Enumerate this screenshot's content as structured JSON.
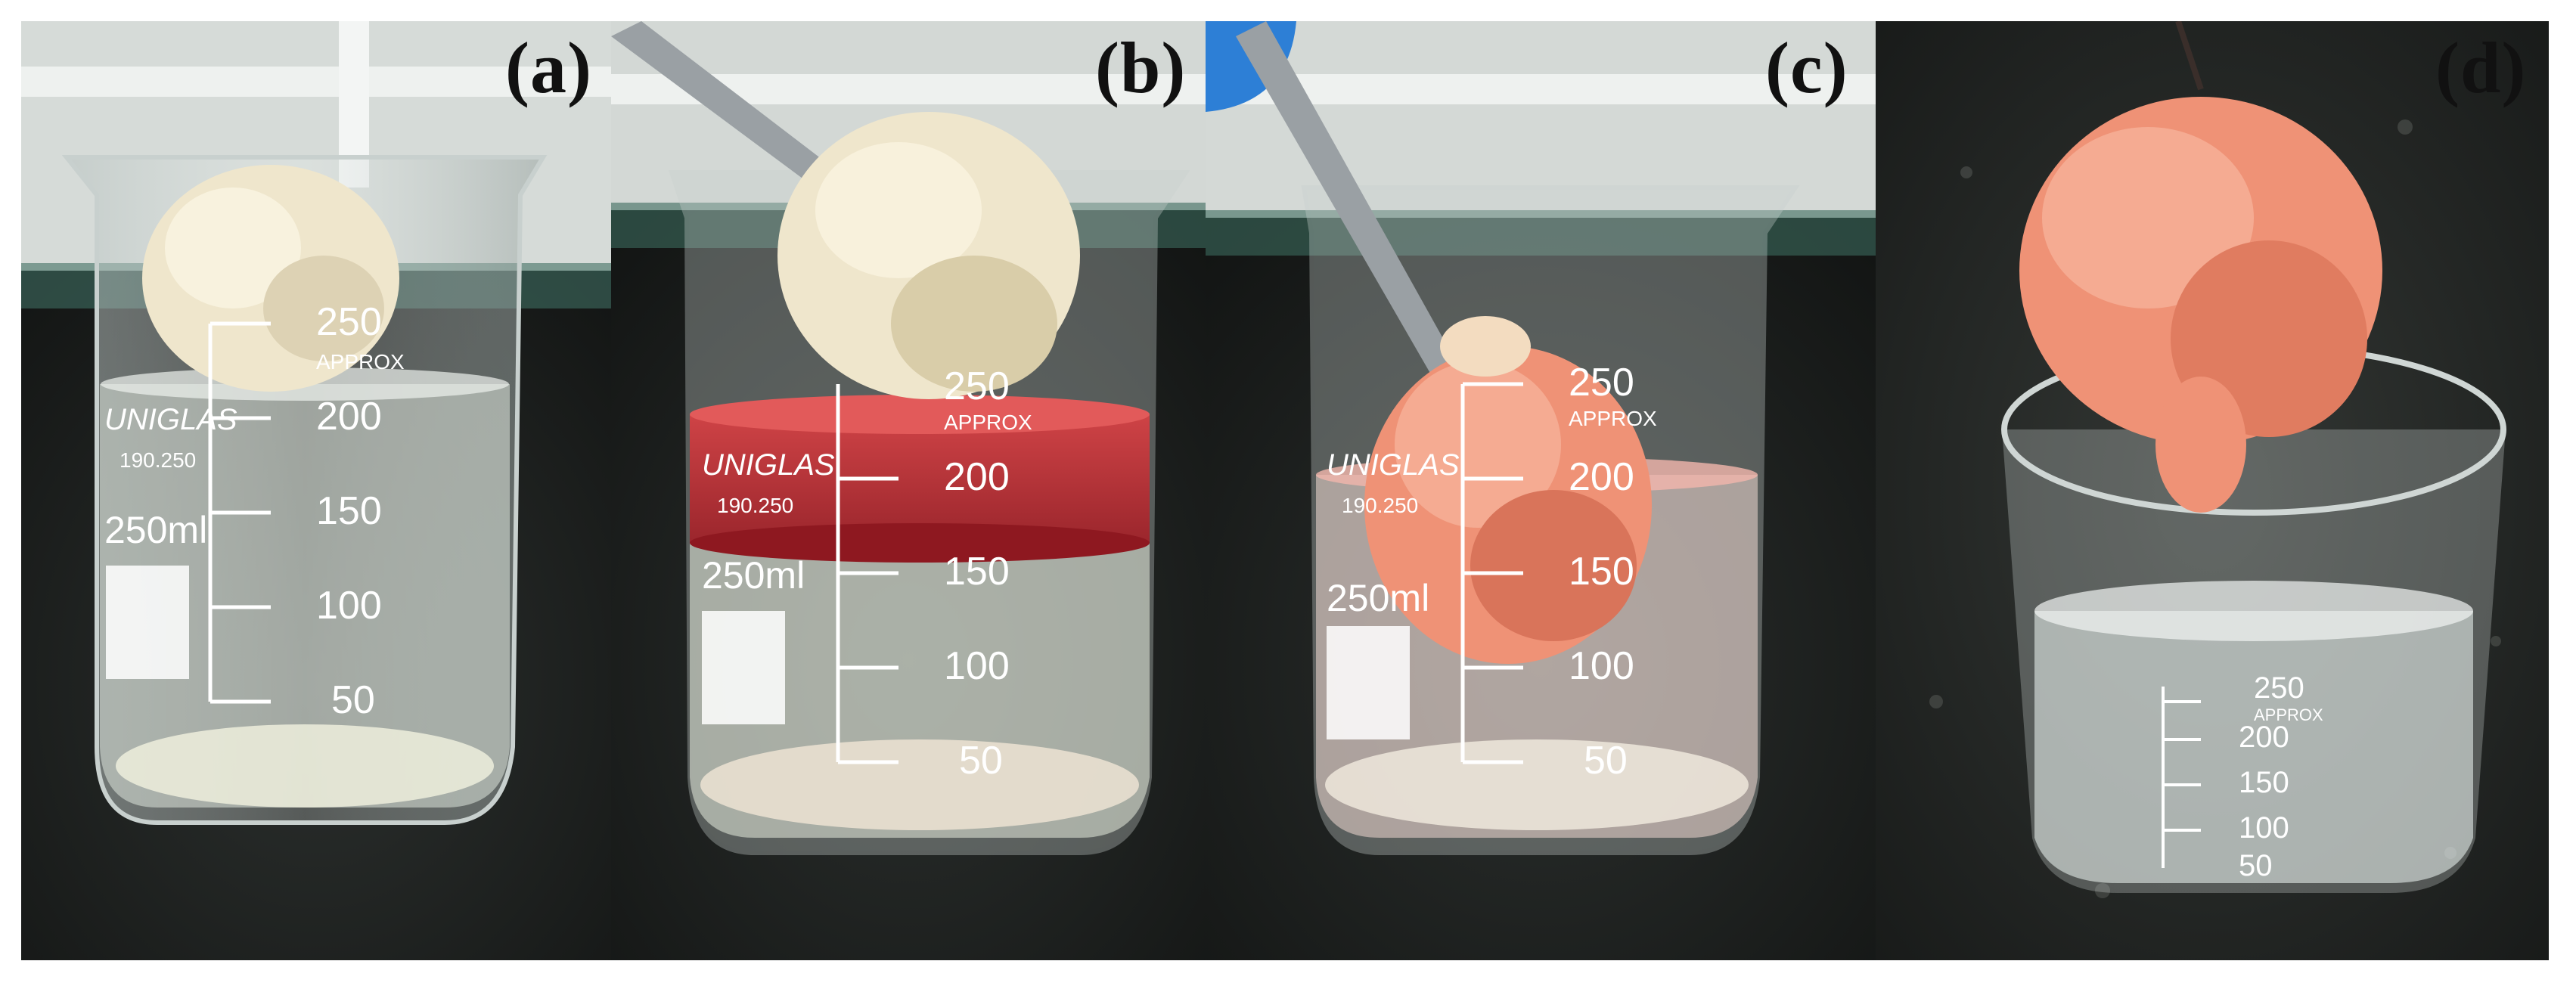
{
  "figure": {
    "panels": [
      {
        "label": "(a)"
      },
      {
        "label": "(b)"
      },
      {
        "label": "(c)"
      },
      {
        "label": "(d)"
      }
    ]
  },
  "beaker": {
    "brand": "UNIGLAS",
    "model": "190.250",
    "capacity": "250ml",
    "approx": "APPROX",
    "marks": [
      "250",
      "200",
      "150",
      "100",
      "50"
    ]
  },
  "colors": {
    "counter": "#1b1e1c",
    "wall": "#dfe3e0",
    "solution_red": "#c2242c",
    "fiber_white": "#efe6cc",
    "fiber_orange": "#ef9276",
    "tweezers": "#9aa0a4"
  }
}
